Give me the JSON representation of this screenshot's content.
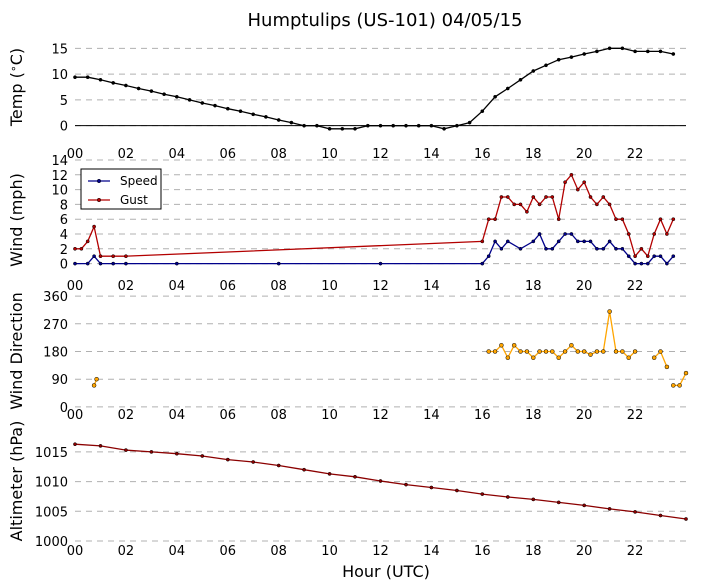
{
  "chart_data": {
    "type": "line",
    "title": "Humptulips (US-101) 04/05/15",
    "xlabel": "Hour (UTC)",
    "x_ticks": [
      "00",
      "02",
      "04",
      "06",
      "08",
      "10",
      "12",
      "14",
      "16",
      "18",
      "20",
      "22"
    ],
    "xlim": [
      0,
      24
    ],
    "panels": [
      {
        "name": "temp",
        "ylabel": "Temp ($^\\circ$C)",
        "ylim": [
          -2,
          17
        ],
        "yticks": [
          0,
          5,
          10,
          15
        ],
        "zero_line": true,
        "series": [
          {
            "color": "#000000",
            "x": [
              0.0,
              0.5,
              1.0,
              1.5,
              2.0,
              2.5,
              3.0,
              3.5,
              4.0,
              4.5,
              5.0,
              5.5,
              6.0,
              6.5,
              7.0,
              7.5,
              8.0,
              8.5,
              9.0,
              9.5,
              10.0,
              10.5,
              11.0,
              11.5,
              12.0,
              12.5,
              13.0,
              13.5,
              14.0,
              14.5,
              15.0,
              15.5,
              16.0,
              16.5,
              17.0,
              17.5,
              18.0,
              18.5,
              19.0,
              19.5,
              20.0,
              20.5,
              21.0,
              21.5,
              22.0,
              22.5,
              23.0,
              23.5
            ],
            "values": [
              9.4,
              9.4,
              8.9,
              8.3,
              7.8,
              7.2,
              6.7,
              6.1,
              5.6,
              5.0,
              4.4,
              3.9,
              3.3,
              2.8,
              2.2,
              1.7,
              1.1,
              0.6,
              0.0,
              0.0,
              -0.6,
              -0.6,
              -0.6,
              0.0,
              0.0,
              0.0,
              0.0,
              0.0,
              0.0,
              -0.6,
              0.0,
              0.6,
              2.8,
              5.6,
              7.2,
              8.9,
              10.6,
              11.7,
              12.8,
              13.3,
              13.9,
              14.4,
              15.0,
              15.0,
              14.4,
              14.4,
              14.4,
              13.9
            ]
          }
        ]
      },
      {
        "name": "wind",
        "ylabel": "Wind (mph)",
        "ylim": [
          -1,
          14
        ],
        "yticks": [
          0,
          2,
          4,
          6,
          8,
          10,
          12,
          14
        ],
        "legend": {
          "position": "upper-left",
          "entries": [
            "Speed",
            "Gust"
          ]
        },
        "series": [
          {
            "name": "Speed",
            "color": "#00008b",
            "x": [
              0.0,
              0.5,
              0.75,
              1.0,
              1.5,
              2.0,
              4.0,
              8.0,
              12.0,
              16.0,
              16.25,
              16.5,
              16.75,
              17.0,
              17.5,
              18.0,
              18.25,
              18.5,
              18.75,
              19.0,
              19.25,
              19.5,
              19.75,
              20.0,
              20.25,
              20.5,
              20.75,
              21.0,
              21.25,
              21.5,
              21.75,
              22.0,
              22.25,
              22.5,
              22.75,
              23.0,
              23.25,
              23.5
            ],
            "values": [
              0,
              0,
              1,
              0,
              0,
              0,
              0,
              0,
              0,
              0,
              1,
              3,
              2,
              3,
              2,
              3,
              4,
              2,
              2,
              3,
              4,
              4,
              3,
              3,
              3,
              2,
              2,
              3,
              2,
              2,
              1,
              0,
              0,
              0,
              1,
              1,
              0,
              1
            ]
          },
          {
            "name": "Gust",
            "color": "#b30000",
            "x": [
              0.0,
              0.25,
              0.5,
              0.75,
              1.0,
              1.5,
              2.0,
              16.0,
              16.25,
              16.5,
              16.75,
              17.0,
              17.25,
              17.5,
              17.75,
              18.0,
              18.25,
              18.5,
              18.75,
              19.0,
              19.25,
              19.5,
              19.75,
              20.0,
              20.25,
              20.5,
              20.75,
              21.0,
              21.25,
              21.5,
              21.75,
              22.0,
              22.25,
              22.5,
              22.75,
              23.0,
              23.25,
              23.5
            ],
            "values": [
              2,
              2,
              3,
              5,
              1,
              1,
              1,
              3,
              6,
              6,
              9,
              9,
              8,
              8,
              7,
              9,
              8,
              9,
              9,
              6,
              11,
              12,
              10,
              11,
              9,
              8,
              9,
              8,
              6,
              6,
              4,
              1,
              2,
              1,
              4,
              6,
              4,
              6
            ]
          }
        ]
      },
      {
        "name": "direction",
        "ylabel": "Wind Direction",
        "ylim": [
          -10,
          370
        ],
        "yticks": [
          0,
          90,
          180,
          270,
          360
        ],
        "series": [
          {
            "color": "#ffa500",
            "marker_only_gaps": true,
            "segments": [
              {
                "x": [
                  0.75,
                  0.85
                ],
                "values": [
                  70,
                  90
                ]
              },
              {
                "x": [
                  16.25,
                  16.5,
                  16.75,
                  17.0,
                  17.25,
                  17.5,
                  17.75,
                  18.0,
                  18.25,
                  18.5,
                  18.75,
                  19.0,
                  19.25,
                  19.5,
                  19.75,
                  20.0,
                  20.25,
                  20.5,
                  20.75,
                  21.0,
                  21.25,
                  21.5,
                  21.75,
                  22.0
                ],
                "values": [
                  180,
                  180,
                  200,
                  160,
                  200,
                  180,
                  180,
                  160,
                  180,
                  180,
                  180,
                  160,
                  180,
                  200,
                  180,
                  180,
                  170,
                  180,
                  180,
                  310,
                  180,
                  180,
                  160,
                  180
                ]
              },
              {
                "x": [
                  22.75,
                  23.0,
                  23.25
                ],
                "values": [
                  160,
                  180,
                  130
                ]
              },
              {
                "x": [
                  23.5,
                  23.75,
                  24.0
                ],
                "values": [
                  70,
                  70,
                  110
                ]
              }
            ]
          }
        ]
      },
      {
        "name": "altimeter",
        "ylabel": "Altimeter (hPa)",
        "ylim": [
          1000,
          1017
        ],
        "yticks": [
          1000,
          1005,
          1010,
          1015
        ],
        "series": [
          {
            "color": "#8b0000",
            "x": [
              0.0,
              1.0,
              2.0,
              3.0,
              4.0,
              5.0,
              6.0,
              7.0,
              8.0,
              9.0,
              10.0,
              11.0,
              12.0,
              13.0,
              14.0,
              15.0,
              16.0,
              17.0,
              18.0,
              19.0,
              20.0,
              21.0,
              22.0,
              23.0,
              24.0
            ],
            "values": [
              1016.3,
              1016.0,
              1015.3,
              1015.0,
              1014.7,
              1014.3,
              1013.7,
              1013.3,
              1012.7,
              1012.0,
              1011.3,
              1010.8,
              1010.1,
              1009.5,
              1009.0,
              1008.5,
              1007.9,
              1007.4,
              1007.0,
              1006.5,
              1006.0,
              1005.4,
              1004.9,
              1004.3,
              1003.7
            ]
          }
        ]
      }
    ]
  }
}
